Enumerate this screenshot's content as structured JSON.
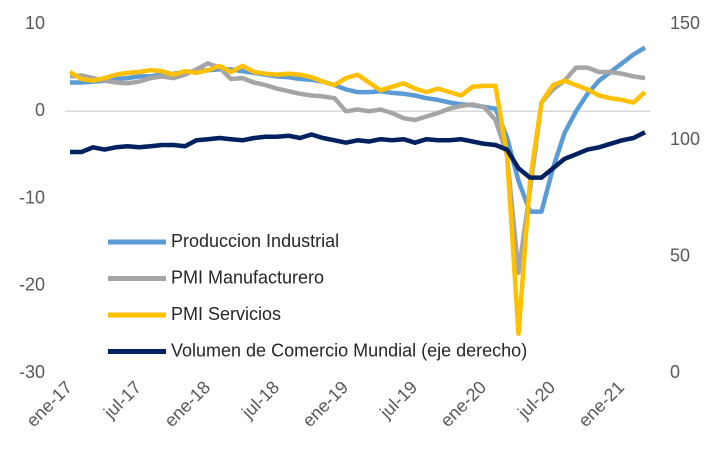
{
  "chart_data": {
    "type": "line",
    "categories": [
      "ene-17",
      null,
      null,
      null,
      null,
      null,
      "jul-17",
      null,
      null,
      null,
      null,
      null,
      "ene-18",
      null,
      null,
      null,
      null,
      null,
      "jul-18",
      null,
      null,
      null,
      null,
      null,
      "ene-19",
      null,
      null,
      null,
      null,
      null,
      "jul-19",
      null,
      null,
      null,
      null,
      null,
      "ene-20",
      null,
      null,
      null,
      null,
      null,
      "jul-20",
      null,
      null,
      null,
      null,
      null,
      "ene-21",
      null,
      null
    ],
    "ylim": [
      -30,
      10
    ],
    "yticks": [
      -30,
      -20,
      -10,
      0,
      10
    ],
    "y2lim": [
      0,
      150
    ],
    "y2ticks": [
      0,
      50,
      100,
      150
    ],
    "legend": "left",
    "series": [
      {
        "name": "Produccion Industrial",
        "color": "#5b9bd5",
        "values": [
          3.3,
          3.3,
          3.4,
          3.5,
          3.7,
          3.8,
          4.0,
          4.0,
          4.2,
          4.3,
          4.5,
          4.6,
          4.7,
          4.8,
          4.8,
          4.6,
          4.4,
          4.2,
          4.0,
          3.9,
          3.7,
          3.6,
          3.4,
          3.0,
          2.5,
          2.2,
          2.2,
          2.3,
          2.1,
          2.0,
          1.8,
          1.5,
          1.3,
          1.0,
          0.8,
          0.7,
          0.5,
          0.3,
          -3.0,
          -8.0,
          -11.5,
          -11.5,
          -6.5,
          -2.5,
          0.0,
          2.0,
          3.5,
          4.5,
          5.5,
          6.5,
          7.3
        ]
      },
      {
        "name": "PMI Manufacturero",
        "color": "#a5a5a5",
        "values": [
          4.0,
          4.1,
          3.8,
          3.5,
          3.3,
          3.2,
          3.4,
          3.8,
          4.0,
          3.8,
          4.2,
          4.8,
          5.5,
          5.0,
          3.7,
          3.8,
          3.3,
          3.0,
          2.6,
          2.3,
          2.0,
          1.8,
          1.7,
          1.5,
          0.0,
          0.2,
          0.0,
          0.2,
          -0.2,
          -0.8,
          -1.0,
          -0.6,
          -0.2,
          0.3,
          0.6,
          0.8,
          0.5,
          -1.0,
          -5.0,
          -18.5,
          -9.0,
          1.0,
          2.5,
          3.5,
          5.0,
          5.0,
          4.5,
          4.5,
          4.3,
          4.0,
          3.8
        ]
      },
      {
        "name": "PMI Servicios",
        "color": "#ffc000",
        "values": [
          4.5,
          3.7,
          3.5,
          3.8,
          4.2,
          4.4,
          4.5,
          4.7,
          4.6,
          4.2,
          4.6,
          4.4,
          4.7,
          5.2,
          4.5,
          5.2,
          4.5,
          4.3,
          4.2,
          4.3,
          4.2,
          3.9,
          3.4,
          3.0,
          3.8,
          4.2,
          3.3,
          2.4,
          2.8,
          3.2,
          2.6,
          2.2,
          2.6,
          2.2,
          1.8,
          2.8,
          2.9,
          2.9,
          -5.0,
          -25.5,
          -8.0,
          1.0,
          3.0,
          3.5,
          3.0,
          2.5,
          1.8,
          1.5,
          1.3,
          1.0,
          2.2
        ]
      },
      {
        "name": "Volumen de Comercio Mundial (eje derecho)",
        "color": "#002060",
        "axis": "y2",
        "values": [
          95,
          95,
          97,
          96,
          97,
          97.5,
          97,
          97.5,
          98,
          98,
          97.5,
          100,
          100.5,
          101,
          100.5,
          100,
          101,
          101.5,
          101.5,
          102,
          101,
          102.5,
          101,
          100,
          99,
          100,
          99.5,
          100.5,
          100,
          100.5,
          99,
          100.5,
          100,
          100,
          100.5,
          99.5,
          98.5,
          98,
          96,
          88,
          84,
          84,
          88,
          92,
          94,
          96,
          97,
          98.5,
          100,
          101,
          103.5
        ]
      }
    ]
  }
}
